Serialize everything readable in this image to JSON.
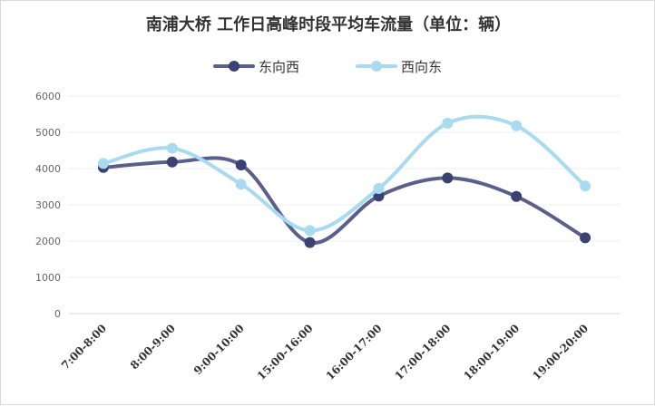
{
  "chart_data": {
    "type": "line",
    "title": "南浦大桥 工作日高峰时段平均车流量（单位：辆）",
    "categories": [
      "7:00-8:00",
      "8:00-9:00",
      "9:00-10:00",
      "15:00-16:00",
      "16:00-17:00",
      "17:00-18:00",
      "18:00-19:00",
      "19:00-20:00"
    ],
    "series": [
      {
        "name": "东向西",
        "color": "#5b5f8c",
        "marker_color": "#3b4172",
        "values": [
          4030,
          4180,
          4100,
          1960,
          3240,
          3740,
          3230,
          2090
        ]
      },
      {
        "name": "西向东",
        "color": "#a8daf0",
        "marker_color": "#a8daf0",
        "values": [
          4140,
          4560,
          3570,
          2290,
          3450,
          5250,
          5180,
          3520
        ]
      }
    ],
    "ylim": [
      0,
      6000
    ],
    "yticks": [
      0,
      1000,
      2000,
      3000,
      4000,
      5000,
      6000
    ],
    "grid": true,
    "legend_position": "top-center"
  }
}
